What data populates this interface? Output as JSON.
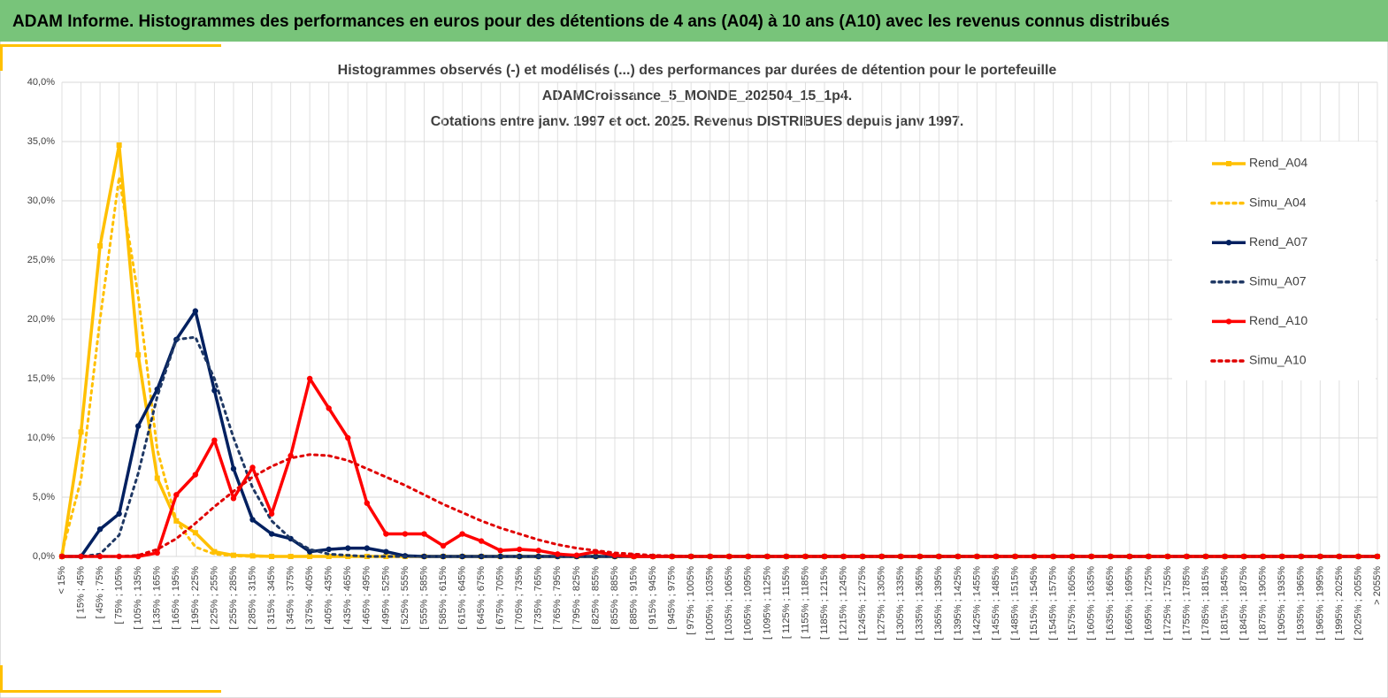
{
  "header": {
    "title": "ADAM Informe. Histogrammes des performances en euros pour des détentions de 4 ans (A04) à 10 ans (A10) avec les revenus connus distribués"
  },
  "chart_data": {
    "type": "line",
    "title": [
      "Histogrammes observés (-) et modélisés (...) des performances par durées de détention pour le portefeuille",
      "ADAMCroissance_5_MONDE_202504_15_1p4.",
      "Cotations entre janv. 1997 et oct. 2025. Revenus DISTRIBUES depuis janv 1997."
    ],
    "categories": [
      "< 15%",
      "[ 15% ; 45%",
      "[ 45% ; 75%",
      "[ 75% ; 105%",
      "[ 105% ; 135%",
      "[ 135% ; 165%",
      "[ 165% ; 195%",
      "[ 195% ; 225%",
      "[ 225% ; 255%",
      "[ 255% ; 285%",
      "[ 285% ; 315%",
      "[ 315% ; 345%",
      "[ 345% ; 375%",
      "[ 375% ; 405%",
      "[ 405% ; 435%",
      "[ 435% ; 465%",
      "[ 465% ; 495%",
      "[ 495% ; 525%",
      "[ 525% ; 555%",
      "[ 555% ; 585%",
      "[ 585% ; 615%",
      "[ 615% ; 645%",
      "[ 645% ; 675%",
      "[ 675% ; 705%",
      "[ 705% ; 735%",
      "[ 735% ; 765%",
      "[ 765% ; 795%",
      "[ 795% ; 825%",
      "[ 825% ; 855%",
      "[ 855% ; 885%",
      "[ 885% ; 915%",
      "[ 915% ; 945%",
      "[ 945% ; 975%",
      "[ 975% ; 1005%",
      "[ 1005% ; 1035%",
      "[ 1035% ; 1065%",
      "[ 1065% ; 1095%",
      "[ 1095% ; 1125%",
      "[ 1125% ; 1155%",
      "[ 1155% ; 1185%",
      "[ 1185% ; 1215%",
      "[ 1215% ; 1245%",
      "[ 1245% ; 1275%",
      "[ 1275% ; 1305%",
      "[ 1305% ; 1335%",
      "[ 1335% ; 1365%",
      "[ 1365% ; 1395%",
      "[ 1395% ; 1425%",
      "[ 1425% ; 1455%",
      "[ 1455% ; 1485%",
      "[ 1485% ; 1515%",
      "[ 1515% ; 1545%",
      "[ 1545% ; 1575%",
      "[ 1575% ; 1605%",
      "[ 1605% ; 1635%",
      "[ 1635% ; 1665%",
      "[ 1665% ; 1695%",
      "[ 1695% ; 1725%",
      "[ 1725% ; 1755%",
      "[ 1755% ; 1785%",
      "[ 1785% ; 1815%",
      "[ 1815% ; 1845%",
      "[ 1845% ; 1875%",
      "[ 1875% ; 1905%",
      "[ 1905% ; 1935%",
      "[ 1935% ; 1965%",
      "[ 1965% ; 1995%",
      "[ 1995% ; 2025%",
      "[ 2025% ; 2055%",
      "> 2055%"
    ],
    "series": [
      {
        "name": "Rend_A04",
        "color": "#ffc000",
        "dash": false,
        "marker": "square",
        "values": [
          0,
          10.5,
          26.2,
          34.7,
          17.0,
          6.6,
          3.0,
          2.0,
          0.4,
          0.1,
          0.05,
          0,
          0,
          0,
          0,
          0,
          0,
          0,
          0,
          0,
          0,
          0,
          0,
          0,
          0,
          0,
          0,
          0,
          0,
          0,
          0,
          0,
          0,
          0,
          0,
          0,
          0,
          0,
          0,
          0,
          0,
          0,
          0,
          0,
          0,
          0,
          0,
          0,
          0,
          0,
          0,
          0,
          0,
          0,
          0,
          0,
          0,
          0,
          0,
          0,
          0,
          0,
          0,
          0,
          0,
          0,
          0,
          0,
          0,
          0
        ]
      },
      {
        "name": "Simu_A04",
        "color": "#ffc000",
        "dash": true,
        "marker": null,
        "values": [
          0.3,
          6.5,
          20,
          32,
          22,
          9,
          3,
          0.8,
          0.2,
          0.05,
          0,
          0,
          0,
          0,
          0,
          0,
          0,
          0,
          0,
          0,
          0,
          0,
          0,
          0,
          0,
          0,
          0,
          0,
          0,
          0,
          0,
          0,
          0,
          0,
          0,
          0,
          0,
          0,
          0,
          0,
          0,
          0,
          0,
          0,
          0,
          0,
          0,
          0,
          0,
          0,
          0,
          0,
          0,
          0,
          0,
          0,
          0,
          0,
          0,
          0,
          0,
          0,
          0,
          0,
          0,
          0,
          0,
          0,
          0,
          0
        ]
      },
      {
        "name": "Rend_A07",
        "color": "#002060",
        "dash": false,
        "marker": "circle",
        "values": [
          0,
          0,
          2.3,
          3.6,
          11.0,
          14.1,
          18.3,
          20.7,
          14.0,
          7.4,
          3.1,
          1.9,
          1.5,
          0.4,
          0.6,
          0.7,
          0.7,
          0.4,
          0.05,
          0,
          0,
          0,
          0,
          0,
          0,
          0,
          0,
          0,
          0,
          0,
          0,
          0,
          0,
          0,
          0,
          0,
          0,
          0,
          0,
          0,
          0,
          0,
          0,
          0,
          0,
          0,
          0,
          0,
          0,
          0,
          0,
          0,
          0,
          0,
          0,
          0,
          0,
          0,
          0,
          0,
          0,
          0,
          0,
          0,
          0,
          0,
          0,
          0,
          0,
          0
        ]
      },
      {
        "name": "Simu_A07",
        "color": "#1f3864",
        "dash": true,
        "marker": null,
        "values": [
          0,
          0,
          0.2,
          1.8,
          7,
          13.5,
          18.3,
          18.5,
          15,
          10,
          5.8,
          3,
          1.5,
          0.6,
          0.2,
          0.1,
          0,
          0,
          0,
          0,
          0,
          0,
          0,
          0,
          0,
          0,
          0,
          0,
          0,
          0,
          0,
          0,
          0,
          0,
          0,
          0,
          0,
          0,
          0,
          0,
          0,
          0,
          0,
          0,
          0,
          0,
          0,
          0,
          0,
          0,
          0,
          0,
          0,
          0,
          0,
          0,
          0,
          0,
          0,
          0,
          0,
          0,
          0,
          0,
          0,
          0,
          0,
          0,
          0,
          0
        ]
      },
      {
        "name": "Rend_A10",
        "color": "#ff0000",
        "dash": false,
        "marker": "circle",
        "values": [
          0,
          0,
          0,
          0,
          0,
          0.3,
          5.2,
          6.9,
          9.8,
          4.9,
          7.5,
          3.6,
          8.5,
          15.0,
          12.5,
          10.0,
          4.5,
          1.9,
          1.9,
          1.9,
          0.9,
          1.9,
          1.3,
          0.5,
          0.6,
          0.5,
          0.2,
          0.1,
          0.4,
          0.1,
          0,
          0,
          0,
          0,
          0,
          0,
          0,
          0,
          0,
          0,
          0,
          0,
          0,
          0,
          0,
          0,
          0,
          0,
          0,
          0,
          0,
          0,
          0,
          0,
          0,
          0,
          0,
          0,
          0,
          0,
          0,
          0,
          0,
          0,
          0,
          0,
          0,
          0,
          0,
          0
        ]
      },
      {
        "name": "Simu_A10",
        "color": "#e00000",
        "dash": true,
        "marker": null,
        "values": [
          0,
          0,
          0,
          0,
          0.1,
          0.6,
          1.5,
          2.8,
          4.2,
          5.5,
          6.7,
          7.6,
          8.3,
          8.6,
          8.5,
          8.1,
          7.4,
          6.7,
          6.0,
          5.2,
          4.4,
          3.7,
          3.0,
          2.4,
          1.9,
          1.4,
          1.0,
          0.7,
          0.5,
          0.3,
          0.2,
          0.1,
          0.05,
          0,
          0,
          0,
          0,
          0,
          0,
          0,
          0,
          0,
          0,
          0,
          0,
          0,
          0,
          0,
          0,
          0,
          0,
          0,
          0,
          0,
          0,
          0,
          0,
          0,
          0,
          0,
          0,
          0,
          0,
          0,
          0,
          0,
          0,
          0,
          0,
          0
        ]
      }
    ],
    "ylim": [
      0,
      40
    ],
    "yticks": [
      {
        "value": 0,
        "label": "0,0%"
      },
      {
        "value": 5,
        "label": "5,0%"
      },
      {
        "value": 10,
        "label": "10,0%"
      },
      {
        "value": 15,
        "label": "15,0%"
      },
      {
        "value": 20,
        "label": "20,0%"
      },
      {
        "value": 25,
        "label": "25,0%"
      },
      {
        "value": 30,
        "label": "30,0%"
      },
      {
        "value": 35,
        "label": "35,0%"
      },
      {
        "value": 40,
        "label": "40,0%"
      }
    ],
    "grid": true,
    "legend": "right"
  }
}
